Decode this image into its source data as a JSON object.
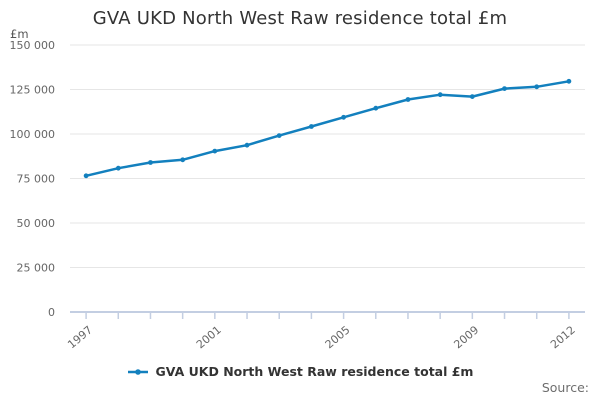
{
  "title": "GVA UKD North West Raw residence total £m",
  "y_axis": {
    "unit_label": "£m",
    "tick_labels": [
      "150 000",
      "125 000",
      "100 000",
      "75 000",
      "50 000",
      "25 000",
      "0"
    ],
    "tick_values": [
      150000,
      125000,
      100000,
      75000,
      50000,
      25000,
      0
    ]
  },
  "x_axis": {
    "labeled_years": [
      "1997",
      "2001",
      "2005",
      "2009",
      "2012"
    ]
  },
  "legend": {
    "label": "GVA UKD North West Raw residence total £m"
  },
  "source_label": "Source:",
  "colors": {
    "line": "#1380BE",
    "grid": "#e6e6e6",
    "axis": "#c3cee2",
    "tick_text": "#666666",
    "unit_text": "#555555",
    "title_text": "#333333",
    "source_text": "#6e6e6e"
  },
  "chart_data": {
    "type": "line",
    "title": "GVA UKD North West Raw residence total £m",
    "xlabel": "",
    "ylabel": "£m",
    "ylim": [
      0,
      150000
    ],
    "grid": true,
    "legend_position": "bottom",
    "x": [
      1997,
      1998,
      1999,
      2000,
      2001,
      2002,
      2003,
      2004,
      2005,
      2006,
      2007,
      2008,
      2009,
      2010,
      2011,
      2012
    ],
    "series": [
      {
        "name": "GVA UKD North West Raw residence total £m",
        "values": [
          76500,
          80800,
          84000,
          85500,
          90400,
          93700,
          99100,
          104200,
          109400,
          114500,
          119400,
          122100,
          121000,
          125500,
          126500,
          129600
        ]
      }
    ]
  }
}
